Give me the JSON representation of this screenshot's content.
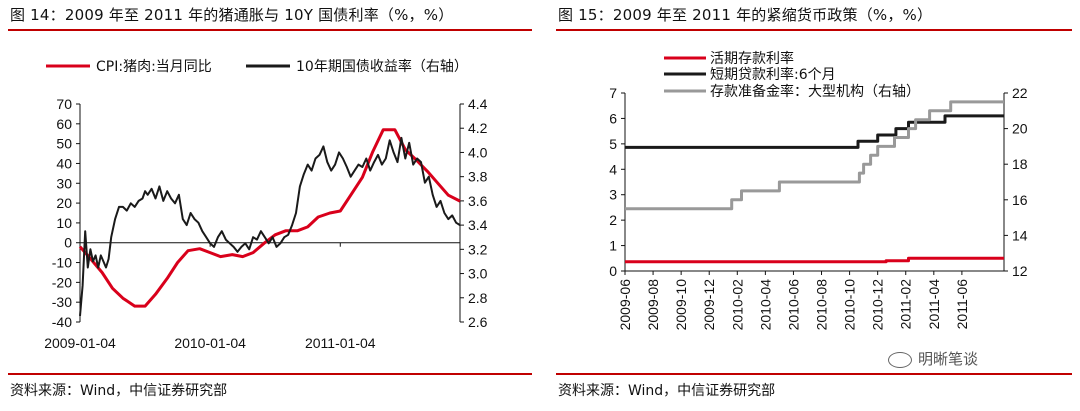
{
  "left": {
    "title": "图 14：2009 年至 2011 年的猪通胀与 10Y 国债利率（%，%）",
    "source": "资料来源：Wind，中信证券研究部"
  },
  "right": {
    "title": "图 15：2009 年至 2011 年的紧缩货币政策（%，%）",
    "source": "资料来源：Wind，中信证券研究部",
    "watermark": "明晰笔谈"
  },
  "colors": {
    "red": "#d9001b",
    "black": "#1a1a1a",
    "gray": "#999999",
    "rule": "#c00000"
  },
  "chart_data": [
    {
      "type": "line",
      "title": "图 14：2009 年至 2011 年的猪通胀与 10Y 国债利率（%，%）",
      "legend_position": "top",
      "x_ticks": [
        "2009-01-04",
        "2010-01-04",
        "2011-01-04"
      ],
      "ylim": [
        -40,
        70
      ],
      "y_ticks": [
        -40,
        -30,
        -20,
        -10,
        0,
        10,
        20,
        30,
        40,
        50,
        60,
        70
      ],
      "y2lim": [
        2.6,
        4.4
      ],
      "y2_ticks": [
        "2.6",
        "2.8",
        "3.0",
        "3.2",
        "3.4",
        "3.6",
        "3.8",
        "4.0",
        "4.2",
        "4.4"
      ],
      "x_range": [
        2009.0,
        2011.92
      ],
      "series": [
        {
          "name": "CPI:猪肉:当月同比",
          "color": "#d9001b",
          "axis": "left",
          "step": false,
          "x": [
            2009.0,
            2009.08,
            2009.17,
            2009.25,
            2009.33,
            2009.42,
            2009.5,
            2009.58,
            2009.67,
            2009.75,
            2009.83,
            2009.92,
            2010.0,
            2010.08,
            2010.17,
            2010.25,
            2010.33,
            2010.42,
            2010.5,
            2010.58,
            2010.67,
            2010.75,
            2010.83,
            2010.92,
            2011.0,
            2011.08,
            2011.17,
            2011.25,
            2011.33,
            2011.42,
            2011.5,
            2011.58,
            2011.67,
            2011.75,
            2011.83,
            2011.92
          ],
          "values": [
            -2,
            -8,
            -15,
            -23,
            -28,
            -32,
            -32,
            -26,
            -18,
            -10,
            -4,
            -3,
            -5,
            -7,
            -6,
            -7,
            -5,
            0,
            4,
            6,
            6,
            8,
            13,
            15,
            16,
            24,
            33,
            46,
            57,
            57,
            47,
            42,
            36,
            30,
            24,
            21
          ]
        },
        {
          "name": "10年期国债收益率（右轴）",
          "color": "#1a1a1a",
          "axis": "right",
          "step": false,
          "x": [
            2009.0,
            2009.02,
            2009.04,
            2009.06,
            2009.08,
            2009.1,
            2009.12,
            2009.14,
            2009.16,
            2009.18,
            2009.2,
            2009.22,
            2009.24,
            2009.27,
            2009.3,
            2009.33,
            2009.36,
            2009.39,
            2009.42,
            2009.45,
            2009.48,
            2009.5,
            2009.52,
            2009.55,
            2009.58,
            2009.61,
            2009.64,
            2009.67,
            2009.7,
            2009.73,
            2009.76,
            2009.79,
            2009.82,
            2009.85,
            2009.88,
            2009.91,
            2009.94,
            2009.97,
            2010.0,
            2010.03,
            2010.06,
            2010.09,
            2010.12,
            2010.15,
            2010.18,
            2010.21,
            2010.24,
            2010.27,
            2010.3,
            2010.33,
            2010.36,
            2010.39,
            2010.42,
            2010.45,
            2010.48,
            2010.51,
            2010.54,
            2010.57,
            2010.6,
            2010.63,
            2010.66,
            2010.69,
            2010.72,
            2010.75,
            2010.78,
            2010.81,
            2010.84,
            2010.87,
            2010.9,
            2010.93,
            2010.96,
            2010.99,
            2011.02,
            2011.05,
            2011.08,
            2011.11,
            2011.14,
            2011.17,
            2011.2,
            2011.23,
            2011.26,
            2011.29,
            2011.32,
            2011.35,
            2011.38,
            2011.41,
            2011.44,
            2011.47,
            2011.5,
            2011.53,
            2011.56,
            2011.59,
            2011.62,
            2011.65,
            2011.68,
            2011.71,
            2011.74,
            2011.77,
            2011.8,
            2011.83,
            2011.86,
            2011.89,
            2011.92
          ],
          "values": [
            2.65,
            2.9,
            3.35,
            3.05,
            3.2,
            3.1,
            3.15,
            3.05,
            3.15,
            3.1,
            3.05,
            3.12,
            3.3,
            3.45,
            3.55,
            3.55,
            3.52,
            3.58,
            3.55,
            3.6,
            3.62,
            3.68,
            3.65,
            3.7,
            3.62,
            3.72,
            3.6,
            3.68,
            3.62,
            3.58,
            3.65,
            3.45,
            3.4,
            3.5,
            3.45,
            3.42,
            3.35,
            3.3,
            3.25,
            3.22,
            3.3,
            3.35,
            3.28,
            3.25,
            3.22,
            3.18,
            3.22,
            3.25,
            3.2,
            3.3,
            3.28,
            3.35,
            3.3,
            3.25,
            3.3,
            3.22,
            3.25,
            3.3,
            3.32,
            3.4,
            3.5,
            3.72,
            3.82,
            3.9,
            3.85,
            3.95,
            3.98,
            4.05,
            3.92,
            3.85,
            3.9,
            4.0,
            3.95,
            3.88,
            3.8,
            3.85,
            3.9,
            3.88,
            3.95,
            3.85,
            3.92,
            3.98,
            3.9,
            3.95,
            4.1,
            4.0,
            3.92,
            4.12,
            3.95,
            4.08,
            3.9,
            3.95,
            3.92,
            3.75,
            3.8,
            3.65,
            3.55,
            3.6,
            3.5,
            3.45,
            3.48,
            3.42,
            3.4
          ]
        }
      ]
    },
    {
      "type": "line",
      "title": "图 15：2009 年至 2011 年的紧缩货币政策（%，%）",
      "legend_position": "top-left",
      "x_ticks": [
        "2009-06",
        "2009-08",
        "2009-10",
        "2009-12",
        "2010-02",
        "2010-04",
        "2010-06",
        "2010-08",
        "2010-10",
        "2010-12",
        "2011-02",
        "2011-04",
        "2011-06"
      ],
      "ylim": [
        0,
        7
      ],
      "y_ticks": [
        0,
        1,
        2,
        3,
        4,
        5,
        6,
        7
      ],
      "y2lim": [
        12,
        22
      ],
      "y2_ticks": [
        "12",
        "14",
        "16",
        "18",
        "20",
        "22"
      ],
      "x_range": [
        0,
        27
      ],
      "series": [
        {
          "name": "活期存款利率",
          "color": "#d9001b",
          "axis": "left",
          "step": true,
          "x": [
            0,
            18.6,
            20.2,
            27
          ],
          "values": [
            0.36,
            0.4,
            0.5,
            0.5
          ]
        },
        {
          "name": "短期贷款利率:6个月",
          "color": "#1a1a1a",
          "axis": "left",
          "step": true,
          "x": [
            0,
            16.6,
            18.0,
            19.3,
            20.2,
            22.8,
            25.0,
            27
          ],
          "values": [
            4.86,
            5.1,
            5.35,
            5.6,
            5.85,
            6.1,
            6.1,
            6.1
          ]
        },
        {
          "name": "存款准备金率：大型机构（右轴）",
          "color": "#999999",
          "axis": "right",
          "step": true,
          "x": [
            0,
            7.6,
            8.3,
            11.0,
            16.7,
            17.0,
            17.5,
            18.0,
            18.5,
            19.2,
            19.7,
            20.2,
            20.7,
            21.2,
            21.7,
            22.2,
            23.2,
            27
          ],
          "values": [
            15.5,
            16.0,
            16.5,
            17.0,
            17.5,
            18.0,
            18.5,
            19.0,
            19.0,
            19.5,
            19.5,
            20.0,
            20.5,
            20.5,
            21.0,
            21.0,
            21.5,
            21.5
          ]
        }
      ]
    }
  ]
}
